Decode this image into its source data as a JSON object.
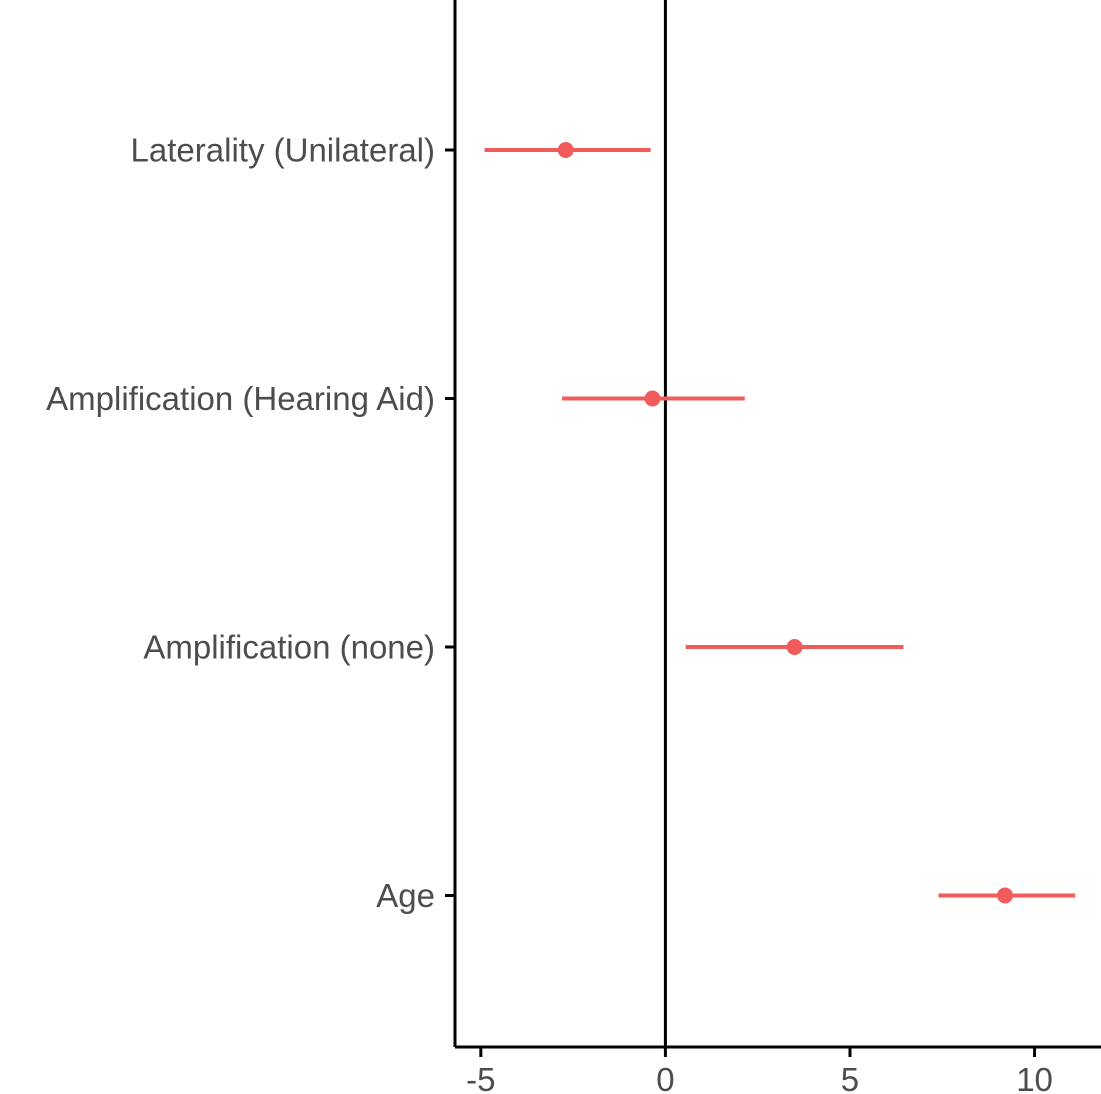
{
  "chart_data": {
    "type": "scatter",
    "subtype": "forest-plot",
    "categories": [
      "Laterality (Unilateral)",
      "Amplification (Hearing Aid)",
      "Amplification (none)",
      "Age"
    ],
    "estimates": [
      -2.7,
      -0.35,
      3.5,
      9.2
    ],
    "ci_low": [
      -4.9,
      -2.8,
      0.55,
      7.4
    ],
    "ci_high": [
      -0.4,
      2.15,
      6.45,
      11.1
    ],
    "x_ticks": [
      -5,
      0,
      5,
      10
    ],
    "x_tick_labels": [
      "-5",
      "0",
      "5",
      "10"
    ],
    "xlim": [
      -5.7,
      11.8
    ],
    "reference_line": 0,
    "title": "",
    "xlabel": "",
    "ylabel": "",
    "grid": false,
    "color": "#f15b5b"
  }
}
